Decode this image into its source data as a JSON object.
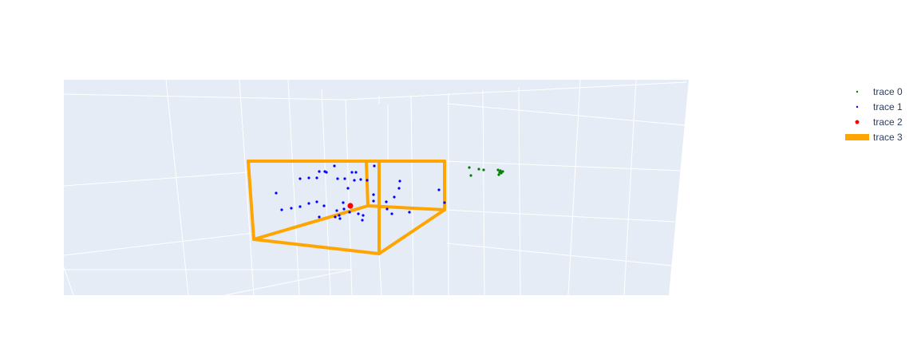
{
  "chart_data": {
    "type": "scatter3d",
    "title": "",
    "colors": {
      "scene_background": "#e5ecf6",
      "grid": "#ffffff",
      "legend_text": "#2a3f5f"
    },
    "legend": {
      "placement": "top-right",
      "entries": [
        {
          "label": "trace 0",
          "color": "#008000",
          "kind": "small-marker"
        },
        {
          "label": "trace 1",
          "color": "#0000ff",
          "kind": "small-marker"
        },
        {
          "label": "trace 2",
          "color": "#ff0000",
          "kind": "marker"
        },
        {
          "label": "trace 3",
          "color": "#ffa500",
          "kind": "line"
        }
      ]
    },
    "series": [
      {
        "name": "trace 0",
        "mode": "markers",
        "color": "#008000",
        "points": [
          [
            588,
            210
          ],
          [
            600,
            212
          ],
          [
            606,
            213
          ],
          [
            590,
            220
          ],
          [
            624,
            213
          ],
          [
            627,
            214
          ],
          [
            630,
            215
          ],
          [
            625,
            219
          ],
          [
            628,
            217
          ],
          [
            626,
            216
          ]
        ]
      },
      {
        "name": "trace 1",
        "mode": "markers",
        "color": "#0000ff",
        "points": [
          [
            346,
            242
          ],
          [
            353,
            263
          ],
          [
            365,
            261
          ],
          [
            376,
            259
          ],
          [
            387,
            255
          ],
          [
            397,
            253
          ],
          [
            406,
            258
          ],
          [
            400,
            272
          ],
          [
            376,
            224
          ],
          [
            387,
            223
          ],
          [
            397,
            223
          ],
          [
            400,
            215
          ],
          [
            407,
            215
          ],
          [
            409,
            216
          ],
          [
            419,
            208
          ],
          [
            423,
            224
          ],
          [
            432,
            224
          ],
          [
            441,
            216
          ],
          [
            446,
            216
          ],
          [
            444,
            226
          ],
          [
            452,
            225
          ],
          [
            460,
            226
          ],
          [
            436,
            236
          ],
          [
            430,
            254
          ],
          [
            431,
            262
          ],
          [
            422,
            264
          ],
          [
            425,
            270
          ],
          [
            438,
            266
          ],
          [
            449,
            268
          ],
          [
            455,
            270
          ],
          [
            420,
            272
          ],
          [
            426,
            274
          ],
          [
            454,
            276
          ],
          [
            468,
            244
          ],
          [
            468,
            252
          ],
          [
            469,
            208
          ],
          [
            484,
            253
          ],
          [
            494,
            247
          ],
          [
            500,
            236
          ],
          [
            501,
            227
          ],
          [
            485,
            262
          ],
          [
            491,
            268
          ],
          [
            513,
            266
          ],
          [
            550,
            238
          ],
          [
            557,
            254
          ]
        ]
      },
      {
        "name": "trace 2",
        "mode": "markers",
        "color": "#ff0000",
        "points": [
          [
            439,
            258
          ]
        ]
      },
      {
        "name": "trace 3",
        "mode": "lines",
        "color": "#ffa500",
        "segments": [
          [
            [
              311,
              202
            ],
            [
              557,
              202
            ]
          ],
          [
            [
              557,
              202
            ],
            [
              557,
              263
            ]
          ],
          [
            [
              557,
              263
            ],
            [
              475,
              318
            ]
          ],
          [
            [
              475,
              318
            ],
            [
              318,
              300
            ]
          ],
          [
            [
              318,
              300
            ],
            [
              311,
              202
            ]
          ],
          [
            [
              318,
              300
            ],
            [
              461,
              258
            ]
          ],
          [
            [
              461,
              258
            ],
            [
              557,
              263
            ]
          ],
          [
            [
              461,
              258
            ],
            [
              459,
              202
            ]
          ],
          [
            [
              475,
              318
            ],
            [
              475,
              202
            ]
          ]
        ]
      }
    ]
  }
}
